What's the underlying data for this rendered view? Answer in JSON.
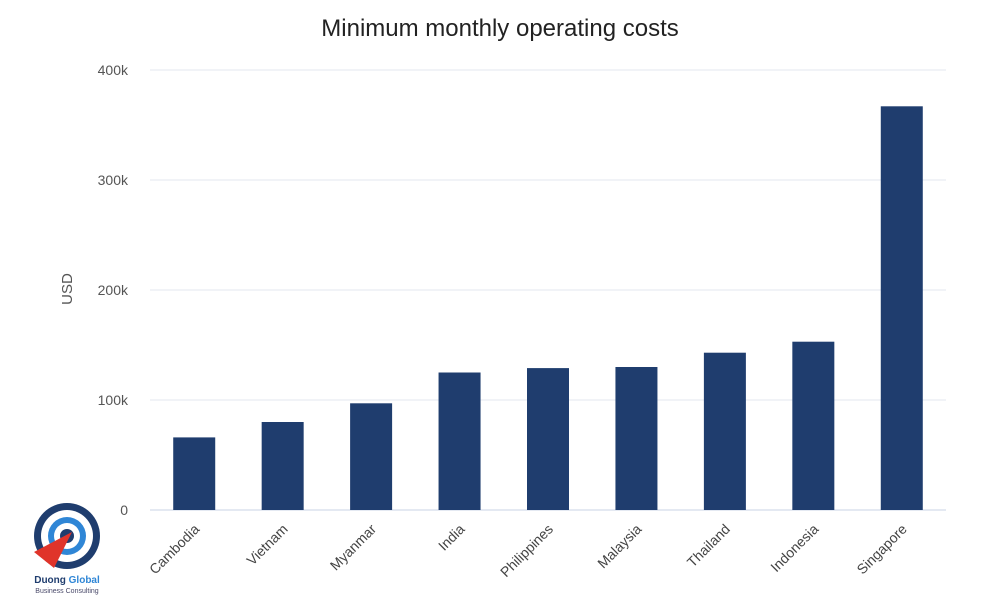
{
  "chart_data": {
    "type": "bar",
    "title": "Minimum monthly operating costs",
    "xlabel": "",
    "ylabel": "USD",
    "categories": [
      "Cambodia",
      "Vietnam",
      "Myanmar",
      "India",
      "Philippines",
      "Malaysia",
      "Thailand",
      "Indonesia",
      "Singapore"
    ],
    "values": [
      66000,
      80000,
      97000,
      125000,
      129000,
      130000,
      143000,
      153000,
      367000
    ],
    "ylim": [
      0,
      400000
    ],
    "yticks": [
      0,
      100000,
      200000,
      300000,
      400000
    ],
    "ytick_labels": [
      "0",
      "100k",
      "200k",
      "300k",
      "400k"
    ],
    "grid": true,
    "legend": "none",
    "bar_color": "#1f3d6e"
  },
  "logo": {
    "name_part1": "Duong",
    "name_part2": "Global",
    "tagline": "Business Consulting",
    "colors": {
      "navy": "#1f3d6e",
      "blue": "#2f86d6",
      "red": "#e0342a"
    }
  }
}
